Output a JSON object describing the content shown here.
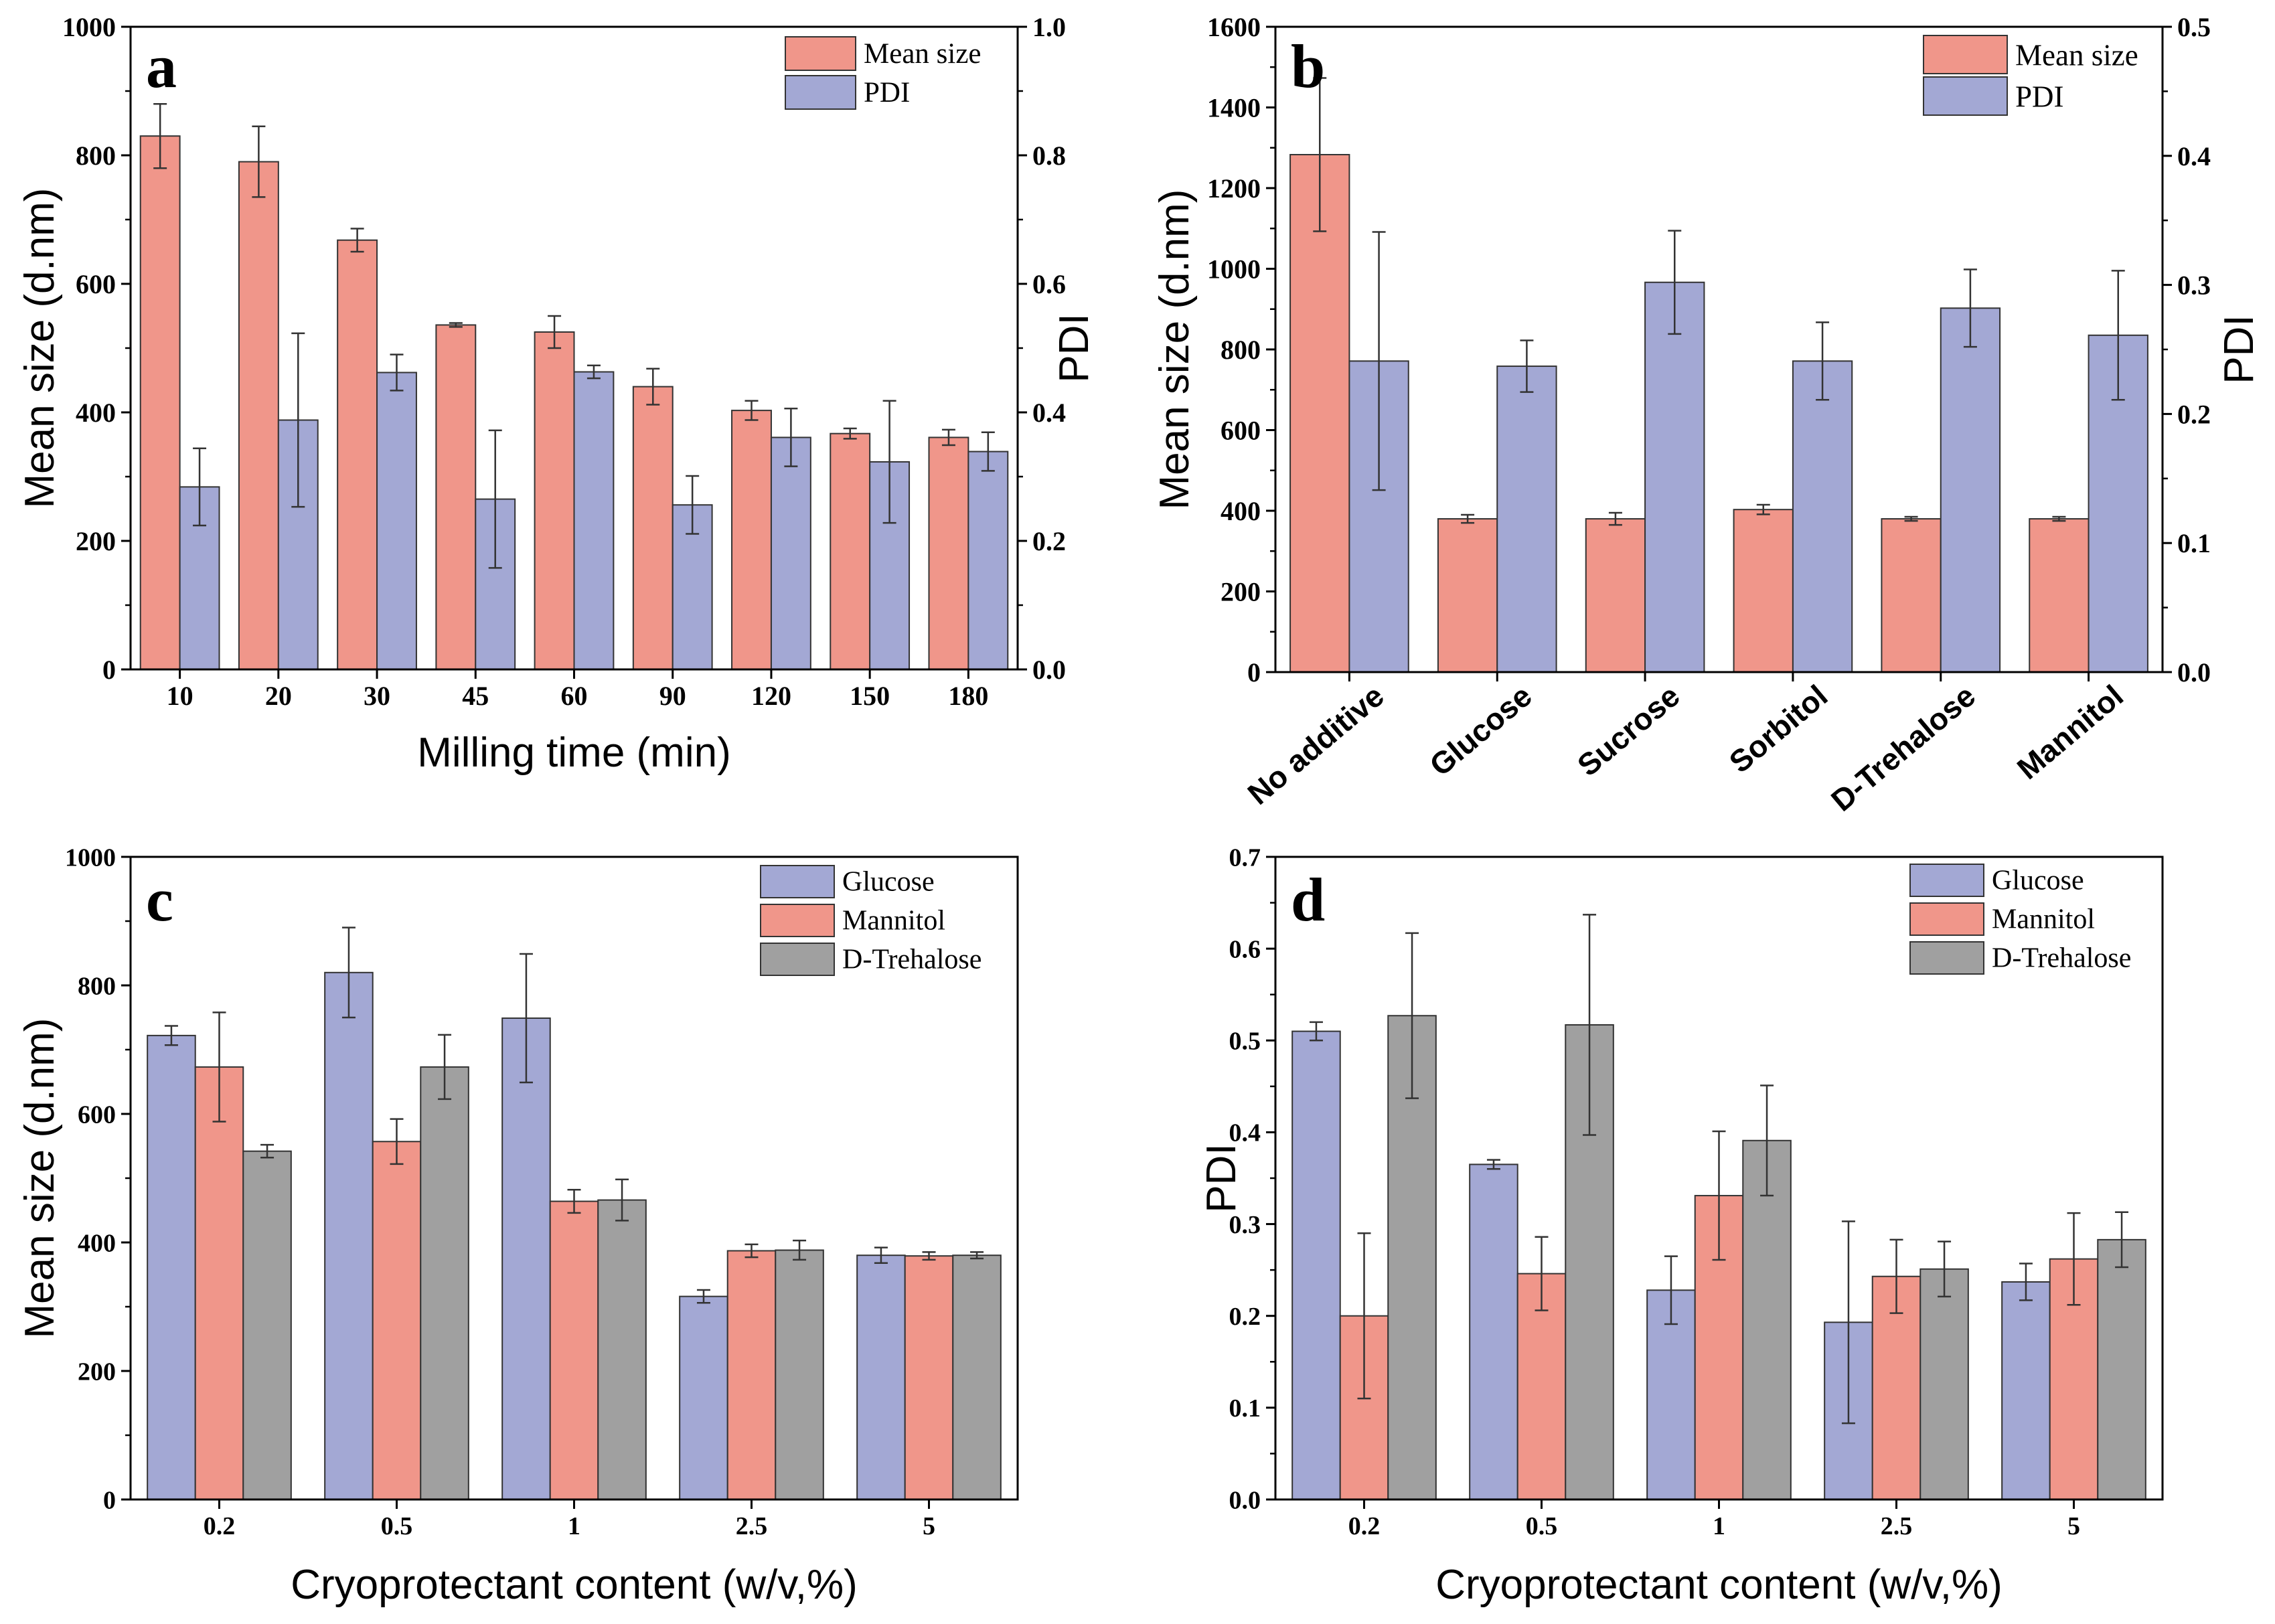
{
  "chart_data": [
    {
      "panel": "a",
      "type": "bar",
      "xlabel": "Milling time (min)",
      "ylabel": "Mean size (d.nm)",
      "y2label": "PDI",
      "categories": [
        "10",
        "20",
        "30",
        "45",
        "60",
        "90",
        "120",
        "150",
        "180"
      ],
      "ylim": [
        0,
        1000
      ],
      "y2lim": [
        0,
        1.0
      ],
      "yticks": [
        "0",
        "200",
        "400",
        "600",
        "800",
        "1000"
      ],
      "y2ticks": [
        "0.0",
        "0.2",
        "0.4",
        "0.6",
        "0.8",
        "1.0"
      ],
      "legend_position": "top-right",
      "series": [
        {
          "name": "Mean size",
          "axis": "left",
          "color": "#F0968A",
          "values": [
            830,
            790,
            668,
            536,
            525,
            440,
            403,
            367,
            361
          ],
          "errors": [
            50,
            55,
            18,
            3,
            25,
            28,
            15,
            8,
            12
          ]
        },
        {
          "name": "PDI",
          "axis": "right",
          "color": "#A3A8D4",
          "values": [
            0.284,
            0.388,
            0.462,
            0.265,
            0.463,
            0.256,
            0.361,
            0.323,
            0.339
          ],
          "errors": [
            0.06,
            0.135,
            0.028,
            0.107,
            0.01,
            0.045,
            0.045,
            0.095,
            0.03
          ]
        }
      ]
    },
    {
      "panel": "b",
      "type": "bar",
      "xlabel": "",
      "ylabel": "Mean size (d.nm)",
      "y2label": "PDI",
      "categories": [
        "No additive",
        "Glucose",
        "Sucrose",
        "Sorbitol",
        "D-Trehalose",
        "Mannitol"
      ],
      "ylim": [
        0,
        1600
      ],
      "y2lim": [
        0,
        0.5
      ],
      "yticks": [
        "0",
        "200",
        "400",
        "600",
        "800",
        "1000",
        "1200",
        "1400",
        "1600"
      ],
      "y2ticks": [
        "0.0",
        "0.1",
        "0.2",
        "0.3",
        "0.4",
        "0.5"
      ],
      "legend_position": "top-right",
      "series": [
        {
          "name": "Mean size",
          "axis": "left",
          "color": "#F0968A",
          "values": [
            1283,
            380,
            380,
            403,
            380,
            380
          ],
          "errors": [
            190,
            10,
            15,
            12,
            5,
            5
          ]
        },
        {
          "name": "PDI",
          "axis": "right",
          "color": "#A3A8D4",
          "values": [
            0.241,
            0.237,
            0.302,
            0.241,
            0.282,
            0.261
          ],
          "errors": [
            0.1,
            0.02,
            0.04,
            0.03,
            0.03,
            0.05
          ]
        }
      ]
    },
    {
      "panel": "c",
      "type": "bar",
      "xlabel": "Cryoprotectant content (w/v,%)",
      "ylabel": "Mean size (d.nm)",
      "categories": [
        "0.2",
        "0.5",
        "1",
        "2.5",
        "5"
      ],
      "ylim": [
        0,
        1000
      ],
      "yticks": [
        "0",
        "200",
        "400",
        "600",
        "800",
        "1000"
      ],
      "legend_position": "top-right",
      "series": [
        {
          "name": "Glucose",
          "color": "#A3A8D4",
          "values": [
            722,
            820,
            749,
            316,
            380
          ],
          "errors": [
            15,
            70,
            100,
            10,
            12
          ]
        },
        {
          "name": "Mannitol",
          "color": "#F0968A",
          "values": [
            673,
            557,
            464,
            387,
            379
          ],
          "errors": [
            85,
            35,
            18,
            10,
            6
          ]
        },
        {
          "name": "D-Trehalose",
          "color": "#A0A0A0",
          "values": [
            542,
            673,
            466,
            388,
            380
          ],
          "errors": [
            10,
            50,
            32,
            15,
            5
          ]
        }
      ]
    },
    {
      "panel": "d",
      "type": "bar",
      "xlabel": "Cryoprotectant content (w/v,%)",
      "ylabel": "PDI",
      "categories": [
        "0.2",
        "0.5",
        "1",
        "2.5",
        "5"
      ],
      "ylim": [
        0,
        0.7
      ],
      "yticks": [
        "0.0",
        "0.1",
        "0.2",
        "0.3",
        "0.4",
        "0.5",
        "0.6",
        "0.7"
      ],
      "legend_position": "top-right",
      "series": [
        {
          "name": "Glucose",
          "color": "#A3A8D4",
          "values": [
            0.51,
            0.365,
            0.228,
            0.193,
            0.237
          ],
          "errors": [
            0.01,
            0.005,
            0.037,
            0.11,
            0.02
          ]
        },
        {
          "name": "Mannitol",
          "color": "#F0968A",
          "values": [
            0.2,
            0.246,
            0.331,
            0.243,
            0.262
          ],
          "errors": [
            0.09,
            0.04,
            0.07,
            0.04,
            0.05
          ]
        },
        {
          "name": "D-Trehalose",
          "color": "#A0A0A0",
          "values": [
            0.527,
            0.517,
            0.391,
            0.251,
            0.283
          ],
          "errors": [
            0.09,
            0.12,
            0.06,
            0.03,
            0.03
          ]
        }
      ]
    }
  ]
}
